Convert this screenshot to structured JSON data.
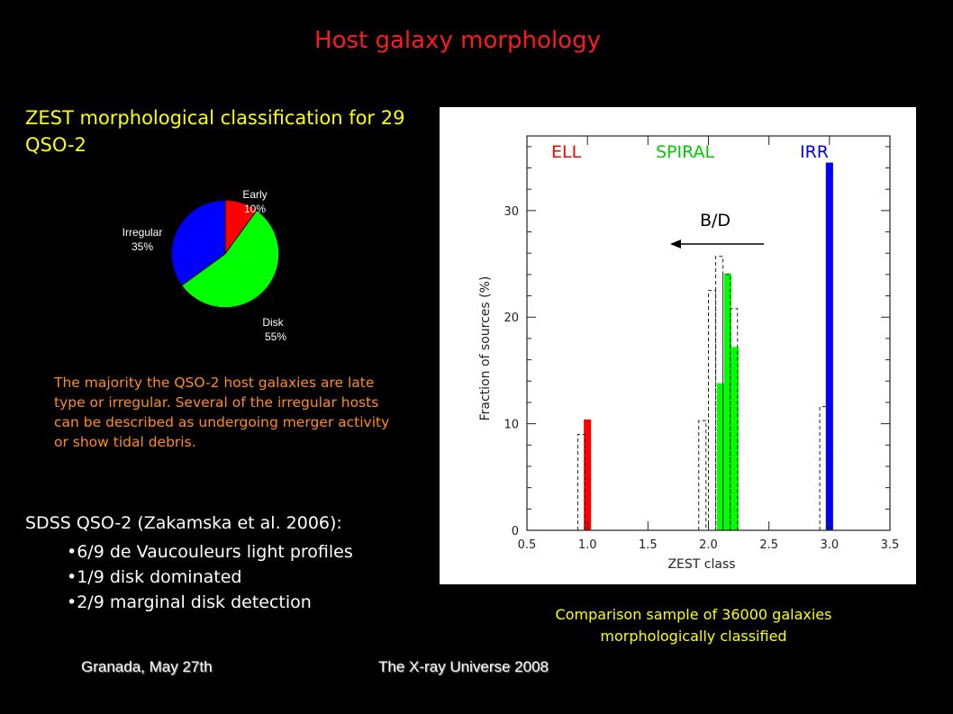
{
  "title": "Host galaxy morphology",
  "zest_heading": "ZEST morphological classification for 29 QSO-2",
  "pie": {
    "slices": [
      {
        "label": "Early",
        "percent": "10%",
        "value": 10,
        "color": "#ff0000"
      },
      {
        "label": "Disk",
        "percent": "55%",
        "value": 55,
        "color": "#00ff00"
      },
      {
        "label": "Irregular",
        "percent": "35%",
        "value": 35,
        "color": "#0000ff"
      }
    ]
  },
  "majority_text": "The majority the QSO-2 host galaxies are late type or  irregular. Several of the irregular hosts can be described as undergoing merger activity or show tidal debris.",
  "sdss": {
    "heading": "SDSS QSO-2 (Zakamska et al. 2006):",
    "items": [
      "6/9 de Vaucouleurs light profiles",
      "1/9 disk dominated",
      "2/9 marginal disk detection"
    ]
  },
  "chart_data": {
    "type": "bar",
    "xlabel": "ZEST class",
    "ylabel": "Fraction of sources (%)",
    "xlim": [
      0.5,
      3.5
    ],
    "ylim": [
      0,
      37
    ],
    "xticks": [
      "0.5",
      "1.0",
      "1.5",
      "2.0",
      "2.5",
      "3.0",
      "3.5"
    ],
    "yticks": [
      "0",
      "10",
      "20",
      "30"
    ],
    "series": [
      {
        "values": [
          {
            "x": 1.0,
            "y": 10.4,
            "color": "#ff0000"
          },
          {
            "x": 2.1,
            "y": 13.8,
            "color": "#00ff00"
          },
          {
            "x": 2.16,
            "y": 24.1,
            "color": "#00ff00"
          },
          {
            "x": 2.22,
            "y": 17.2,
            "color": "#00ff00"
          },
          {
            "x": 3.0,
            "y": 34.5,
            "color": "#0000ff"
          }
        ]
      },
      {
        "style": "dashed-outline",
        "values": [
          {
            "x": 0.95,
            "y": 9.0
          },
          {
            "x": 1.95,
            "y": 10.3
          },
          {
            "x": 2.03,
            "y": 22.5
          },
          {
            "x": 2.09,
            "y": 25.7
          },
          {
            "x": 2.15,
            "y": 24.0
          },
          {
            "x": 2.21,
            "y": 20.8
          },
          {
            "x": 2.95,
            "y": 11.6
          }
        ]
      }
    ],
    "class_labels": [
      {
        "text": "ELL",
        "color": "#ff0000"
      },
      {
        "text": "SPIRAL",
        "color": "#00cc00"
      },
      {
        "text": "IRR",
        "color": "#0000ff"
      }
    ],
    "annotation": "B/D"
  },
  "comparison_caption": "Comparison sample of 36000 galaxies morphologically classified",
  "footer": {
    "left": "Granada, May 27th",
    "right": "The X-ray Universe 2008"
  }
}
